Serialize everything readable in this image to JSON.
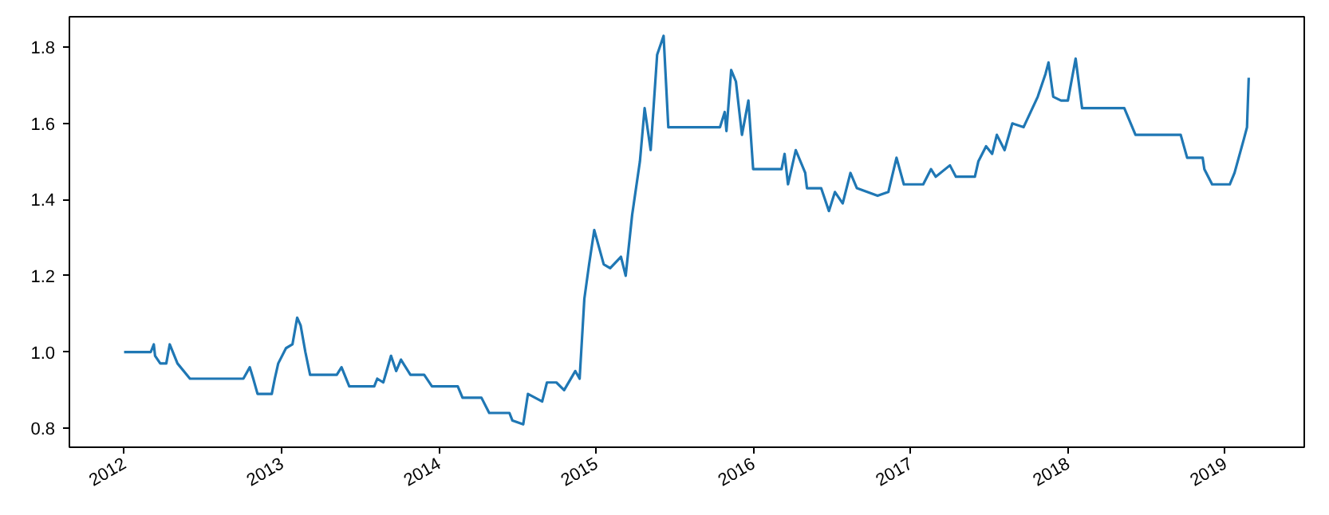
{
  "chart_data": {
    "type": "line",
    "x": [
      "2012-01-01",
      "2012-03-03",
      "2012-03-10",
      "2012-03-13",
      "2012-03-25",
      "2012-04-08",
      "2012-04-16",
      "2012-05-04",
      "2012-06-02",
      "2012-10-04",
      "2012-10-19",
      "2012-10-27",
      "2012-11-06",
      "2012-12-09",
      "2012-12-16",
      "2012-12-24",
      "2013-01-11",
      "2013-01-26",
      "2013-02-06",
      "2013-02-14",
      "2013-02-25",
      "2013-03-08",
      "2013-05-09",
      "2013-05-20",
      "2013-06-07",
      "2013-08-04",
      "2013-08-11",
      "2013-08-25",
      "2013-09-12",
      "2013-09-24",
      "2013-10-05",
      "2013-10-27",
      "2013-11-28",
      "2013-12-16",
      "2014-02-14",
      "2014-02-25",
      "2014-04-10",
      "2014-04-28",
      "2014-06-14",
      "2014-06-21",
      "2014-07-16",
      "2014-07-27",
      "2014-08-29",
      "2014-09-09",
      "2014-10-01",
      "2014-10-19",
      "2014-11-14",
      "2014-11-24",
      "2014-12-05",
      "2014-12-16",
      "2014-12-28",
      "2015-01-19",
      "2015-02-03",
      "2015-02-28",
      "2015-03-11",
      "2015-03-26",
      "2015-04-13",
      "2015-04-24",
      "2015-05-08",
      "2015-05-23",
      "2015-06-07",
      "2015-06-18",
      "2015-10-16",
      "2015-10-27",
      "2015-10-31",
      "2015-11-11",
      "2015-11-22",
      "2015-12-06",
      "2015-12-21",
      "2016-01-01",
      "2016-03-07",
      "2016-03-14",
      "2016-03-22",
      "2016-04-09",
      "2016-05-01",
      "2016-05-05",
      "2016-06-07",
      "2016-06-25",
      "2016-07-09",
      "2016-07-27",
      "2016-08-14",
      "2016-08-29",
      "2016-10-16",
      "2016-11-10",
      "2016-11-29",
      "2016-12-16",
      "2017-01-30",
      "2017-02-17",
      "2017-02-28",
      "2017-04-02",
      "2017-04-16",
      "2017-05-30",
      "2017-06-07",
      "2017-06-25",
      "2017-07-09",
      "2017-07-20",
      "2017-08-07",
      "2017-08-25",
      "2017-09-20",
      "2017-10-23",
      "2017-11-10",
      "2017-11-17",
      "2017-11-28",
      "2017-12-16",
      "2018-01-01",
      "2018-01-19",
      "2018-02-03",
      "2018-05-12",
      "2018-06-07",
      "2018-09-20",
      "2018-10-05",
      "2018-11-10",
      "2018-11-14",
      "2018-12-02",
      "2019-01-12",
      "2019-01-23",
      "2019-02-14",
      "2019-02-21",
      "2019-02-25"
    ],
    "series": [
      {
        "color": "#1f77b4",
        "values": [
          1.0,
          1.0,
          1.02,
          0.99,
          0.97,
          0.97,
          1.02,
          0.97,
          0.93,
          0.93,
          0.96,
          0.93,
          0.89,
          0.89,
          0.93,
          0.97,
          1.01,
          1.02,
          1.09,
          1.07,
          1.0,
          0.94,
          0.94,
          0.96,
          0.91,
          0.91,
          0.93,
          0.92,
          0.99,
          0.95,
          0.98,
          0.94,
          0.94,
          0.91,
          0.91,
          0.88,
          0.88,
          0.84,
          0.84,
          0.82,
          0.81,
          0.89,
          0.87,
          0.92,
          0.92,
          0.9,
          0.95,
          0.93,
          1.14,
          1.23,
          1.32,
          1.23,
          1.22,
          1.25,
          1.2,
          1.36,
          1.5,
          1.64,
          1.53,
          1.78,
          1.83,
          1.59,
          1.59,
          1.63,
          1.58,
          1.74,
          1.71,
          1.57,
          1.66,
          1.48,
          1.48,
          1.52,
          1.44,
          1.53,
          1.47,
          1.43,
          1.43,
          1.37,
          1.42,
          1.39,
          1.47,
          1.43,
          1.41,
          1.42,
          1.51,
          1.44,
          1.44,
          1.48,
          1.46,
          1.49,
          1.46,
          1.46,
          1.5,
          1.54,
          1.52,
          1.57,
          1.53,
          1.6,
          1.59,
          1.67,
          1.73,
          1.76,
          1.67,
          1.66,
          1.66,
          1.77,
          1.64,
          1.64,
          1.57,
          1.57,
          1.51,
          1.51,
          1.48,
          1.44,
          1.44,
          1.47,
          1.56,
          1.59,
          1.72
        ]
      }
    ],
    "xlim": [
      "2011-08-27",
      "2019-07-04"
    ],
    "xticks": [
      "2012",
      "2013",
      "2014",
      "2015",
      "2016",
      "2017",
      "2018",
      "2019"
    ],
    "ylim": [
      0.75,
      1.88
    ],
    "yticks": [
      {
        "value": 0.8,
        "label": "0.8"
      },
      {
        "value": 1.0,
        "label": "1.0"
      },
      {
        "value": 1.2,
        "label": "1.2"
      },
      {
        "value": 1.4,
        "label": "1.4"
      },
      {
        "value": 1.6,
        "label": "1.6"
      },
      {
        "value": 1.8,
        "label": "1.8"
      }
    ],
    "line_style": "solid"
  }
}
